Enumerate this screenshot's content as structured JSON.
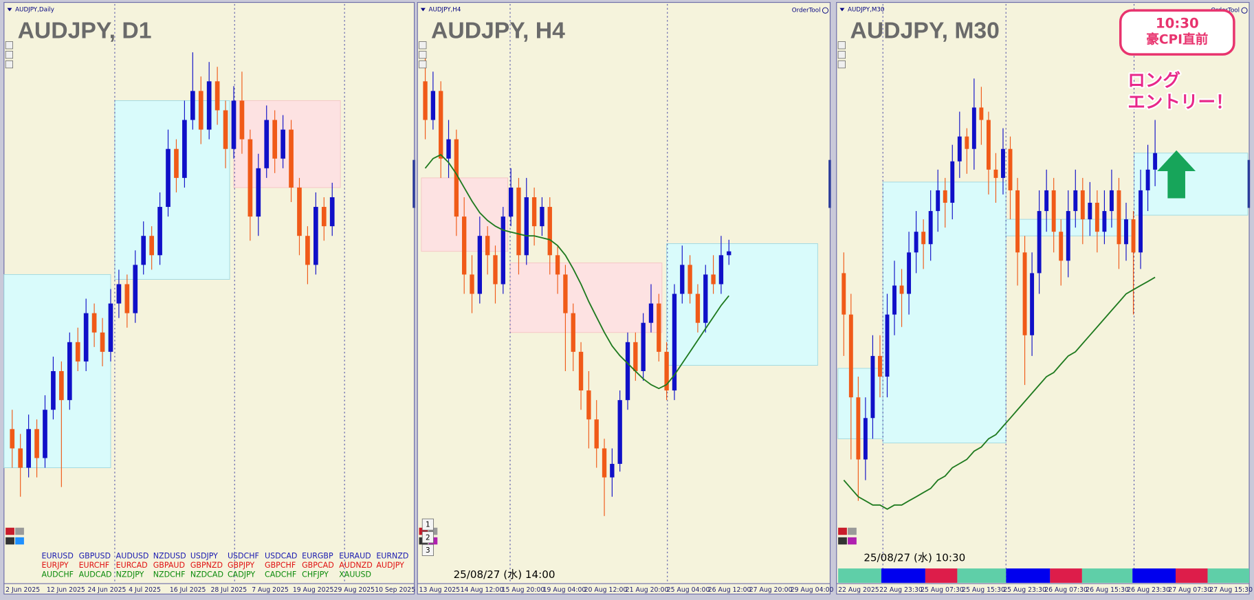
{
  "chart_data": [
    {
      "type": "candlestick",
      "header": "AUDJPY,Daily",
      "title": "AUDJPY, D1",
      "up_color": "#1010c8",
      "down_color": "#f05a18",
      "ylim": [
        92.0,
        98.0
      ],
      "xlim": [
        -1,
        49
      ],
      "candles": [
        [
          93.6,
          93.8,
          93.2,
          93.4
        ],
        [
          93.4,
          93.55,
          92.9,
          93.2
        ],
        [
          93.2,
          93.75,
          93.1,
          93.6
        ],
        [
          93.6,
          93.7,
          93.1,
          93.3
        ],
        [
          93.3,
          93.95,
          93.2,
          93.8
        ],
        [
          93.8,
          94.35,
          93.7,
          94.2
        ],
        [
          94.2,
          94.3,
          93.0,
          93.9
        ],
        [
          93.9,
          94.6,
          93.8,
          94.5
        ],
        [
          94.5,
          94.65,
          94.2,
          94.3
        ],
        [
          94.3,
          94.95,
          94.2,
          94.8
        ],
        [
          94.8,
          94.9,
          94.45,
          94.6
        ],
        [
          94.6,
          94.75,
          94.25,
          94.4
        ],
        [
          94.4,
          95.05,
          94.3,
          94.9
        ],
        [
          94.9,
          95.25,
          94.75,
          95.1
        ],
        [
          95.1,
          95.2,
          94.65,
          94.8
        ],
        [
          94.8,
          95.45,
          94.7,
          95.3
        ],
        [
          95.3,
          95.75,
          95.2,
          95.6
        ],
        [
          95.6,
          95.7,
          95.25,
          95.4
        ],
        [
          95.4,
          96.05,
          95.3,
          95.9
        ],
        [
          95.9,
          96.7,
          95.8,
          96.5
        ],
        [
          96.5,
          96.6,
          96.05,
          96.2
        ],
        [
          96.2,
          97.0,
          96.1,
          96.8
        ],
        [
          96.8,
          97.5,
          96.7,
          97.1
        ],
        [
          97.1,
          97.25,
          96.55,
          96.7
        ],
        [
          96.7,
          97.4,
          96.6,
          97.2
        ],
        [
          97.2,
          97.35,
          96.75,
          96.9
        ],
        [
          96.9,
          97.0,
          96.3,
          96.5
        ],
        [
          96.5,
          97.15,
          96.4,
          97.0
        ],
        [
          97.0,
          97.3,
          96.45,
          96.6
        ],
        [
          96.6,
          96.7,
          95.55,
          95.8
        ],
        [
          95.8,
          96.45,
          95.6,
          96.3
        ],
        [
          96.3,
          96.95,
          96.2,
          96.8
        ],
        [
          96.8,
          96.9,
          96.25,
          96.4
        ],
        [
          96.4,
          96.85,
          96.3,
          96.7
        ],
        [
          96.7,
          96.8,
          95.95,
          96.1
        ],
        [
          96.1,
          96.2,
          95.4,
          95.6
        ],
        [
          95.6,
          95.7,
          95.1,
          95.3
        ],
        [
          95.3,
          96.05,
          95.2,
          95.9
        ],
        [
          95.9,
          96.0,
          95.55,
          95.7
        ],
        [
          95.7,
          96.15,
          95.6,
          96.0
        ]
      ],
      "zones": [
        {
          "from": -1,
          "to": 12,
          "low": 93.2,
          "high": 95.2,
          "color": "#d9fbfb"
        },
        {
          "from": 12.5,
          "to": 26.5,
          "low": 95.15,
          "high": 97.0,
          "color": "#d9fbfb"
        },
        {
          "from": 27,
          "to": 40,
          "low": 96.1,
          "high": 97.0,
          "color": "#fde2e2"
        }
      ],
      "separators": [
        12.5,
        27.1,
        40.5
      ],
      "x_labels": [
        "2 Jun 2025",
        "12 Jun 2025",
        "24 Jun 2025",
        "4 Jul 2025",
        "16 Jul 2025",
        "28 Jul 2025",
        "7 Aug 2025",
        "19 Aug 2025",
        "29 Aug 2025",
        "10 Sep 2025"
      ],
      "symbol_list": [
        {
          "color": "#1a1ab0",
          "symbols": [
            "EURUSD",
            "GBPUSD",
            "AUDUSD",
            "NZDUSD",
            "USDJPY",
            "USDCHF",
            "USDCAD",
            "EURGBP",
            "EURAUD",
            "EURNZD"
          ]
        },
        {
          "color": "#e01010",
          "symbols": [
            "EURJPY",
            "EURCHF",
            "EURCAD",
            "GBPAUD",
            "GBPNZD",
            "GBPJPY",
            "GBPCHF",
            "GBPCAD",
            "AUDNZD",
            "AUDJPY"
          ]
        },
        {
          "color": "#0a8a0a",
          "symbols": [
            "AUDCHF",
            "AUDCAD",
            "NZDJPY",
            "NZDCHF",
            "NZDCAD",
            "CADJPY",
            "CADCHF",
            "CHFJPY",
            "XAUUSD"
          ]
        }
      ]
    },
    {
      "type": "candlestick",
      "header": "AUDJPY,H4",
      "title": "AUDJPY, H4",
      "tool": "OrderTool",
      "timestamp": "25/08/27 (水) 14:00",
      "buttons": [
        "1",
        "2",
        "3"
      ],
      "up_color": "#1010c8",
      "down_color": "#f05a18",
      "ylim": [
        94.0,
        97.0
      ],
      "xlim": [
        -1,
        52
      ],
      "candles": [
        [
          96.6,
          96.75,
          96.3,
          96.4
        ],
        [
          96.4,
          96.65,
          96.35,
          96.55
        ],
        [
          96.55,
          96.6,
          96.1,
          96.2
        ],
        [
          96.2,
          96.4,
          96.1,
          96.3
        ],
        [
          96.3,
          96.35,
          95.8,
          95.9
        ],
        [
          95.9,
          96.0,
          95.5,
          95.6
        ],
        [
          95.6,
          95.7,
          95.4,
          95.5
        ],
        [
          95.5,
          95.9,
          95.45,
          95.8
        ],
        [
          95.8,
          95.85,
          95.6,
          95.7
        ],
        [
          95.7,
          95.75,
          95.45,
          95.55
        ],
        [
          95.55,
          95.95,
          95.5,
          95.9
        ],
        [
          95.9,
          96.15,
          95.85,
          96.05
        ],
        [
          96.05,
          96.1,
          95.6,
          95.7
        ],
        [
          95.7,
          96.1,
          95.65,
          96.0
        ],
        [
          96.0,
          96.05,
          95.75,
          95.85
        ],
        [
          95.85,
          96.0,
          95.8,
          95.95
        ],
        [
          95.95,
          96.0,
          95.6,
          95.7
        ],
        [
          95.7,
          95.75,
          95.5,
          95.6
        ],
        [
          95.6,
          95.65,
          95.1,
          95.4
        ],
        [
          95.4,
          95.45,
          95.1,
          95.2
        ],
        [
          95.2,
          95.25,
          94.9,
          95.0
        ],
        [
          95.0,
          95.1,
          94.7,
          94.85
        ],
        [
          94.85,
          94.95,
          94.6,
          94.7
        ],
        [
          94.7,
          94.75,
          94.35,
          94.55
        ],
        [
          94.55,
          94.7,
          94.45,
          94.62
        ],
        [
          94.62,
          95.0,
          94.58,
          94.95
        ],
        [
          94.95,
          95.3,
          94.9,
          95.25
        ],
        [
          95.25,
          95.3,
          95.05,
          95.1
        ],
        [
          95.1,
          95.4,
          95.05,
          95.35
        ],
        [
          95.35,
          95.55,
          95.3,
          95.45
        ],
        [
          95.45,
          95.5,
          95.15,
          95.2
        ],
        [
          95.2,
          95.25,
          94.95,
          95.0
        ],
        [
          95.0,
          95.55,
          94.95,
          95.5
        ],
        [
          95.5,
          95.75,
          95.45,
          95.65
        ],
        [
          95.65,
          95.7,
          95.45,
          95.5
        ],
        [
          95.5,
          95.55,
          95.3,
          95.35
        ],
        [
          95.35,
          95.65,
          95.3,
          95.6
        ],
        [
          95.6,
          95.7,
          95.5,
          95.55
        ],
        [
          95.55,
          95.8,
          95.5,
          95.7
        ],
        [
          95.7,
          95.78,
          95.65,
          95.72
        ]
      ],
      "ma": {
        "color": "#1f7a1f",
        "values": [
          96.15,
          96.2,
          96.22,
          96.18,
          96.12,
          96.05,
          95.98,
          95.92,
          95.88,
          95.85,
          95.83,
          95.82,
          95.81,
          95.8,
          95.8,
          95.79,
          95.78,
          95.75,
          95.7,
          95.63,
          95.55,
          95.46,
          95.38,
          95.3,
          95.23,
          95.18,
          95.14,
          95.1,
          95.06,
          95.03,
          95.01,
          95.03,
          95.08,
          95.14,
          95.2,
          95.26,
          95.32,
          95.38,
          95.44,
          95.49
        ]
      },
      "zones": [
        {
          "from": -0.5,
          "to": 10.6,
          "low": 95.72,
          "high": 96.1,
          "color": "#fde2e2"
        },
        {
          "from": 10.9,
          "to": 30.4,
          "low": 95.3,
          "high": 95.66,
          "color": "#fde2e2"
        },
        {
          "from": 31,
          "to": 50.4,
          "low": 95.13,
          "high": 95.76,
          "color": "#d9fbfb"
        }
      ],
      "separators": [
        10.9,
        31.1
      ],
      "x_labels": [
        "13 Aug 2025",
        "14 Aug 12:00",
        "15 Aug 20:00",
        "19 Aug 04:00",
        "20 Aug 12:00",
        "21 Aug 20:00",
        "25 Aug 04:00",
        "26 Aug 12:00",
        "27 Aug 20:00",
        "29 Aug 04:00"
      ]
    },
    {
      "type": "candlestick",
      "header": "AUDJPY,M30",
      "title": "AUDJPY, M30",
      "tool": "OrderTool",
      "timestamp": "25/08/27 (水) 10:30",
      "up_color": "#1010c8",
      "down_color": "#f05a18",
      "ylim": [
        95.0,
        96.4
      ],
      "xlim": [
        -1,
        56
      ],
      "candles": [
        [
          95.75,
          95.8,
          95.55,
          95.65
        ],
        [
          95.65,
          95.7,
          95.3,
          95.45
        ],
        [
          95.45,
          95.5,
          95.2,
          95.3
        ],
        [
          95.3,
          95.45,
          95.25,
          95.4
        ],
        [
          95.4,
          95.6,
          95.35,
          95.55
        ],
        [
          95.55,
          95.6,
          95.45,
          95.5
        ],
        [
          95.5,
          95.7,
          95.45,
          95.65
        ],
        [
          95.65,
          95.78,
          95.6,
          95.72
        ],
        [
          95.72,
          95.76,
          95.62,
          95.7
        ],
        [
          95.7,
          95.85,
          95.65,
          95.8
        ],
        [
          95.8,
          95.9,
          95.75,
          95.85
        ],
        [
          95.85,
          95.88,
          95.76,
          95.82
        ],
        [
          95.82,
          95.95,
          95.78,
          95.9
        ],
        [
          95.9,
          96.0,
          95.85,
          95.95
        ],
        [
          95.95,
          95.98,
          95.86,
          95.92
        ],
        [
          95.92,
          96.06,
          95.88,
          96.02
        ],
        [
          96.02,
          96.14,
          95.98,
          96.08
        ],
        [
          96.08,
          96.1,
          95.99,
          96.05
        ],
        [
          96.05,
          96.22,
          96.0,
          96.15
        ],
        [
          96.15,
          96.2,
          96.06,
          96.12
        ],
        [
          96.12,
          96.14,
          95.94,
          96.0
        ],
        [
          96.0,
          96.04,
          95.92,
          95.98
        ],
        [
          95.98,
          96.1,
          95.94,
          96.05
        ],
        [
          96.05,
          96.08,
          95.88,
          95.95
        ],
        [
          95.95,
          95.98,
          95.72,
          95.8
        ],
        [
          95.8,
          95.84,
          95.48,
          95.6
        ],
        [
          95.6,
          95.8,
          95.55,
          95.75
        ],
        [
          95.75,
          95.95,
          95.7,
          95.9
        ],
        [
          95.9,
          96.0,
          95.85,
          95.95
        ],
        [
          95.95,
          95.98,
          95.8,
          95.85
        ],
        [
          95.85,
          95.88,
          95.72,
          95.78
        ],
        [
          95.78,
          95.95,
          95.74,
          95.9
        ],
        [
          95.9,
          96.0,
          95.86,
          95.95
        ],
        [
          95.95,
          95.98,
          95.82,
          95.88
        ],
        [
          95.88,
          95.97,
          95.84,
          95.92
        ],
        [
          95.92,
          95.95,
          95.8,
          95.85
        ],
        [
          95.85,
          95.95,
          95.82,
          95.9
        ],
        [
          95.9,
          96.0,
          95.86,
          95.95
        ],
        [
          95.95,
          95.98,
          95.76,
          95.82
        ],
        [
          95.82,
          95.92,
          95.78,
          95.88
        ],
        [
          95.88,
          95.9,
          95.65,
          95.8
        ],
        [
          95.8,
          96.0,
          95.76,
          95.95
        ],
        [
          95.95,
          96.06,
          95.9,
          96.0
        ],
        [
          96.0,
          96.12,
          95.96,
          96.04
        ]
      ],
      "ma": {
        "color": "#1f7a1f",
        "values": [
          95.25,
          95.23,
          95.21,
          95.2,
          95.19,
          95.19,
          95.18,
          95.19,
          95.19,
          95.2,
          95.21,
          95.22,
          95.23,
          95.25,
          95.26,
          95.28,
          95.29,
          95.3,
          95.32,
          95.33,
          95.35,
          95.36,
          95.38,
          95.4,
          95.42,
          95.44,
          95.46,
          95.48,
          95.5,
          95.51,
          95.53,
          95.55,
          95.56,
          95.58,
          95.6,
          95.62,
          95.64,
          95.66,
          95.68,
          95.7,
          95.71,
          95.72,
          95.73,
          95.74
        ]
      },
      "zones": [
        {
          "from": -0.8,
          "to": 5.4,
          "low": 95.35,
          "high": 95.52,
          "color": "#d9fbfb"
        },
        {
          "from": 5.4,
          "to": 22.4,
          "low": 95.34,
          "high": 95.97,
          "color": "#d9fbfb"
        },
        {
          "from": 22.4,
          "to": 40.1,
          "low": 95.84,
          "high": 95.88,
          "color": "#d9fbfb"
        },
        {
          "from": 40.1,
          "to": 55.8,
          "low": 95.89,
          "high": 96.04,
          "color": "#d9fbfb"
        }
      ],
      "separators": [
        5.4,
        22.4,
        40.1
      ],
      "x_labels": [
        "22 Aug 2025",
        "22 Aug 23:30",
        "25 Aug 07:30",
        "25 Aug 15:30",
        "25 Aug 23:30",
        "26 Aug 07:30",
        "26 Aug 15:30",
        "26 Aug 23:30",
        "27 Aug 07:30",
        "27 Aug 15:30"
      ],
      "callout": {
        "time": "10:30",
        "note": "豪CPI直前"
      },
      "annotation": [
        "ロング",
        "エントリー！"
      ]
    }
  ]
}
